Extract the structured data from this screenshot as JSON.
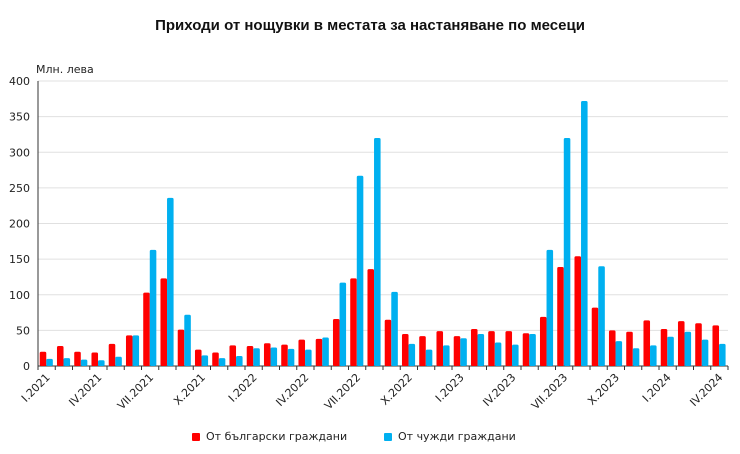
{
  "chart_data": {
    "type": "bar",
    "title": "Приходи от нощувки в местата за настаняване по месеци",
    "ylabel": "Млн. лева",
    "ylim": [
      0,
      400
    ],
    "yticks": [
      0,
      50,
      100,
      150,
      200,
      250,
      300,
      350,
      400
    ],
    "grid": true,
    "legend_position": "bottom",
    "categories": [
      "I.2021",
      "II.2021",
      "III.2021",
      "IV.2021",
      "V.2021",
      "VI.2021",
      "VII.2021",
      "VIII.2021",
      "IX.2021",
      "X.2021",
      "XI.2021",
      "XII.2021",
      "I.2022",
      "II.2022",
      "III.2022",
      "IV.2022",
      "V.2022",
      "VI.2022",
      "VII.2022",
      "VIII.2022",
      "IX.2022",
      "X.2022",
      "XI.2022",
      "XII.2022",
      "I.2023",
      "II.2023",
      "III.2023",
      "IV.2023",
      "V.2023",
      "VI.2023",
      "VII.2023",
      "VIII.2023",
      "IX.2023",
      "X.2023",
      "XI.2023",
      "XII.2023",
      "I.2024",
      "II.2024",
      "III.2024",
      "IV.2024"
    ],
    "xtick_labels": [
      "I.2021",
      "IV.2021",
      "VII.2021",
      "X.2021",
      "I.2022",
      "IV.2022",
      "VII.2022",
      "X.2022",
      "I.2023",
      "IV.2023",
      "VII.2023",
      "X.2023",
      "I.2024",
      "IV.2024"
    ],
    "series": [
      {
        "name": "От български граждани",
        "color": "#ff0000",
        "values": [
          20,
          28,
          20,
          19,
          31,
          43,
          103,
          123,
          51,
          23,
          19,
          29,
          28,
          32,
          30,
          37,
          38,
          66,
          123,
          136,
          65,
          45,
          42,
          49,
          42,
          52,
          49,
          49,
          46,
          69,
          139,
          154,
          82,
          50,
          48,
          64,
          52,
          63,
          60,
          57
        ]
      },
      {
        "name": "От чужди граждани",
        "color": "#00b0f0",
        "values": [
          10,
          11,
          9,
          8,
          13,
          43,
          163,
          236,
          72,
          15,
          11,
          14,
          25,
          26,
          24,
          23,
          40,
          117,
          267,
          320,
          104,
          31,
          23,
          29,
          39,
          45,
          33,
          30,
          45,
          163,
          320,
          372,
          140,
          35,
          25,
          29,
          41,
          48,
          37,
          31
        ]
      }
    ]
  }
}
